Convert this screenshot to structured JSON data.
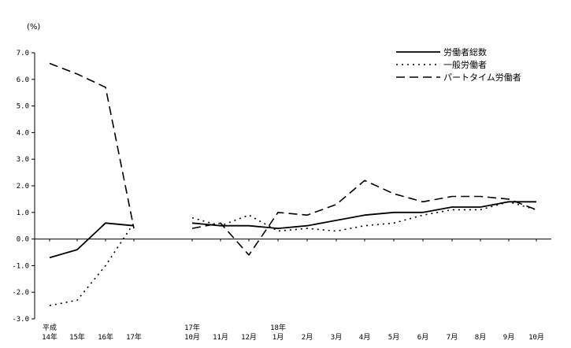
{
  "chart_data": {
    "type": "line",
    "unit_label": "(%)",
    "y_ticks": [
      "7.0",
      "6.0",
      "5.0",
      "4.0",
      "3.0",
      "2.0",
      "1.0",
      "0.0",
      "-1.0",
      "-2.0",
      "-3.0"
    ],
    "ylim": [
      -3.0,
      7.0
    ],
    "x_labels": [
      {
        "top": "平成",
        "bottom": "14年"
      },
      {
        "top": "",
        "bottom": "15年"
      },
      {
        "top": "",
        "bottom": "16年"
      },
      {
        "top": "",
        "bottom": "17年"
      },
      {
        "top": "17年",
        "bottom": "10月"
      },
      {
        "top": "",
        "bottom": "11月"
      },
      {
        "top": "",
        "bottom": "12月"
      },
      {
        "top": "18年",
        "bottom": "1月"
      },
      {
        "top": "",
        "bottom": "2月"
      },
      {
        "top": "",
        "bottom": "3月"
      },
      {
        "top": "",
        "bottom": "4月"
      },
      {
        "top": "",
        "bottom": "5月"
      },
      {
        "top": "",
        "bottom": "6月"
      },
      {
        "top": "",
        "bottom": "7月"
      },
      {
        "top": "",
        "bottom": "8月"
      },
      {
        "top": "",
        "bottom": "9月"
      },
      {
        "top": "",
        "bottom": "10月"
      }
    ],
    "legend_position": "top-right",
    "series": [
      {
        "name": "労働者総数",
        "style": "solid",
        "annual": [
          -0.7,
          -0.4,
          0.6,
          0.5
        ],
        "monthly": [
          0.6,
          0.5,
          0.5,
          0.4,
          0.5,
          0.7,
          0.9,
          1.0,
          1.0,
          1.2,
          1.2,
          1.4,
          1.4
        ]
      },
      {
        "name": "一般労働者",
        "style": "dotted",
        "annual": [
          -2.5,
          -2.3,
          -1.0,
          0.6
        ],
        "monthly": [
          0.8,
          0.5,
          0.9,
          0.3,
          0.4,
          0.3,
          0.5,
          0.6,
          0.9,
          1.1,
          1.1,
          1.4,
          1.1
        ]
      },
      {
        "name": "パートタイム労働者",
        "style": "dashed",
        "annual": [
          6.6,
          6.2,
          5.7,
          0.4
        ],
        "monthly": [
          0.4,
          0.6,
          -0.6,
          1.0,
          0.9,
          1.3,
          2.2,
          1.7,
          1.4,
          1.6,
          1.6,
          1.5,
          1.1
        ]
      }
    ]
  }
}
